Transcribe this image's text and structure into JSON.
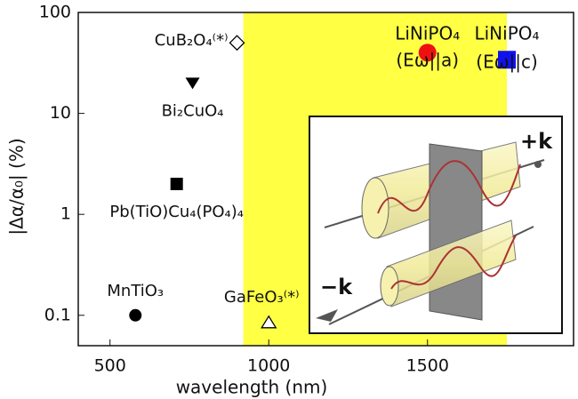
{
  "chart_data": {
    "type": "scatter",
    "xlabel": "wavelength (nm)",
    "ylabel": "|Δα/α₀| (%)",
    "xlim": [
      400,
      1960
    ],
    "ylim": [
      0.05,
      100
    ],
    "log_y": true,
    "xticks": [
      500,
      1000,
      1500
    ],
    "yticks": [
      0.1,
      1,
      10,
      100
    ],
    "band": {
      "x": [
        920,
        1750
      ],
      "color": "#ffff44"
    },
    "series": [
      {
        "name": "CuB₂O₄⁽*⁾",
        "marker": "diamond-open",
        "color": "#000000",
        "x": [
          900
        ],
        "values": [
          50
        ]
      },
      {
        "name": "Bi₂CuO₄",
        "marker": "triangle-down",
        "color": "#000000",
        "x": [
          760
        ],
        "values": [
          20
        ]
      },
      {
        "name": "Pb(TiO)Cu₄(PO₄)₄",
        "marker": "square",
        "color": "#000000",
        "x": [
          710
        ],
        "values": [
          2
        ]
      },
      {
        "name": "MnTiO₃",
        "marker": "circle",
        "color": "#000000",
        "x": [
          580
        ],
        "values": [
          0.1
        ]
      },
      {
        "name": "GaFeO₃⁽*⁾",
        "marker": "triangle-open",
        "color": "#000000",
        "x": [
          1000
        ],
        "values": [
          0.085
        ]
      },
      {
        "name": "LiNiPO₄",
        "sublabel": "(Eω||a)",
        "marker": "circle",
        "color": "#ee1111",
        "x": [
          1500
        ],
        "values": [
          40
        ]
      },
      {
        "name": "LiNiPO₄",
        "sublabel": "(Eω||c)",
        "marker": "square",
        "color": "#1111ee",
        "x": [
          1750
        ],
        "values": [
          34
        ]
      }
    ],
    "inset": {
      "plus_label": "+k",
      "minus_label": "−k"
    }
  }
}
